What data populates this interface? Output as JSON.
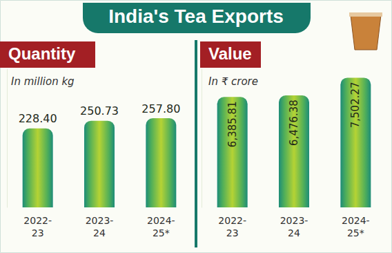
{
  "title": "India's Tea Exports",
  "chart_data": [
    {
      "type": "bar",
      "title": "Quantity",
      "subtitle": "In million kg",
      "categories": [
        "2022-23",
        "2023-24",
        "2024-25*"
      ],
      "values": [
        228.4,
        250.73,
        257.8
      ],
      "value_labels": [
        "228.40",
        "250.73",
        "257.80"
      ],
      "color": "#b5d334",
      "ylim": [
        0,
        400
      ],
      "data_labels": true,
      "tick_labels": "x",
      "grid": false
    },
    {
      "type": "bar",
      "title": "Value",
      "subtitle": "In ₹ crore",
      "categories": [
        "2022-23",
        "2023-24",
        "2024-25*"
      ],
      "values": [
        6385.81,
        6476.38,
        7502.27
      ],
      "value_labels": [
        "6,385.81",
        "6,476.38",
        "7,502.27"
      ],
      "color": "#b5d334",
      "ylim": [
        0,
        8000
      ],
      "data_labels": true,
      "tick_labels": "x",
      "grid": false
    }
  ]
}
